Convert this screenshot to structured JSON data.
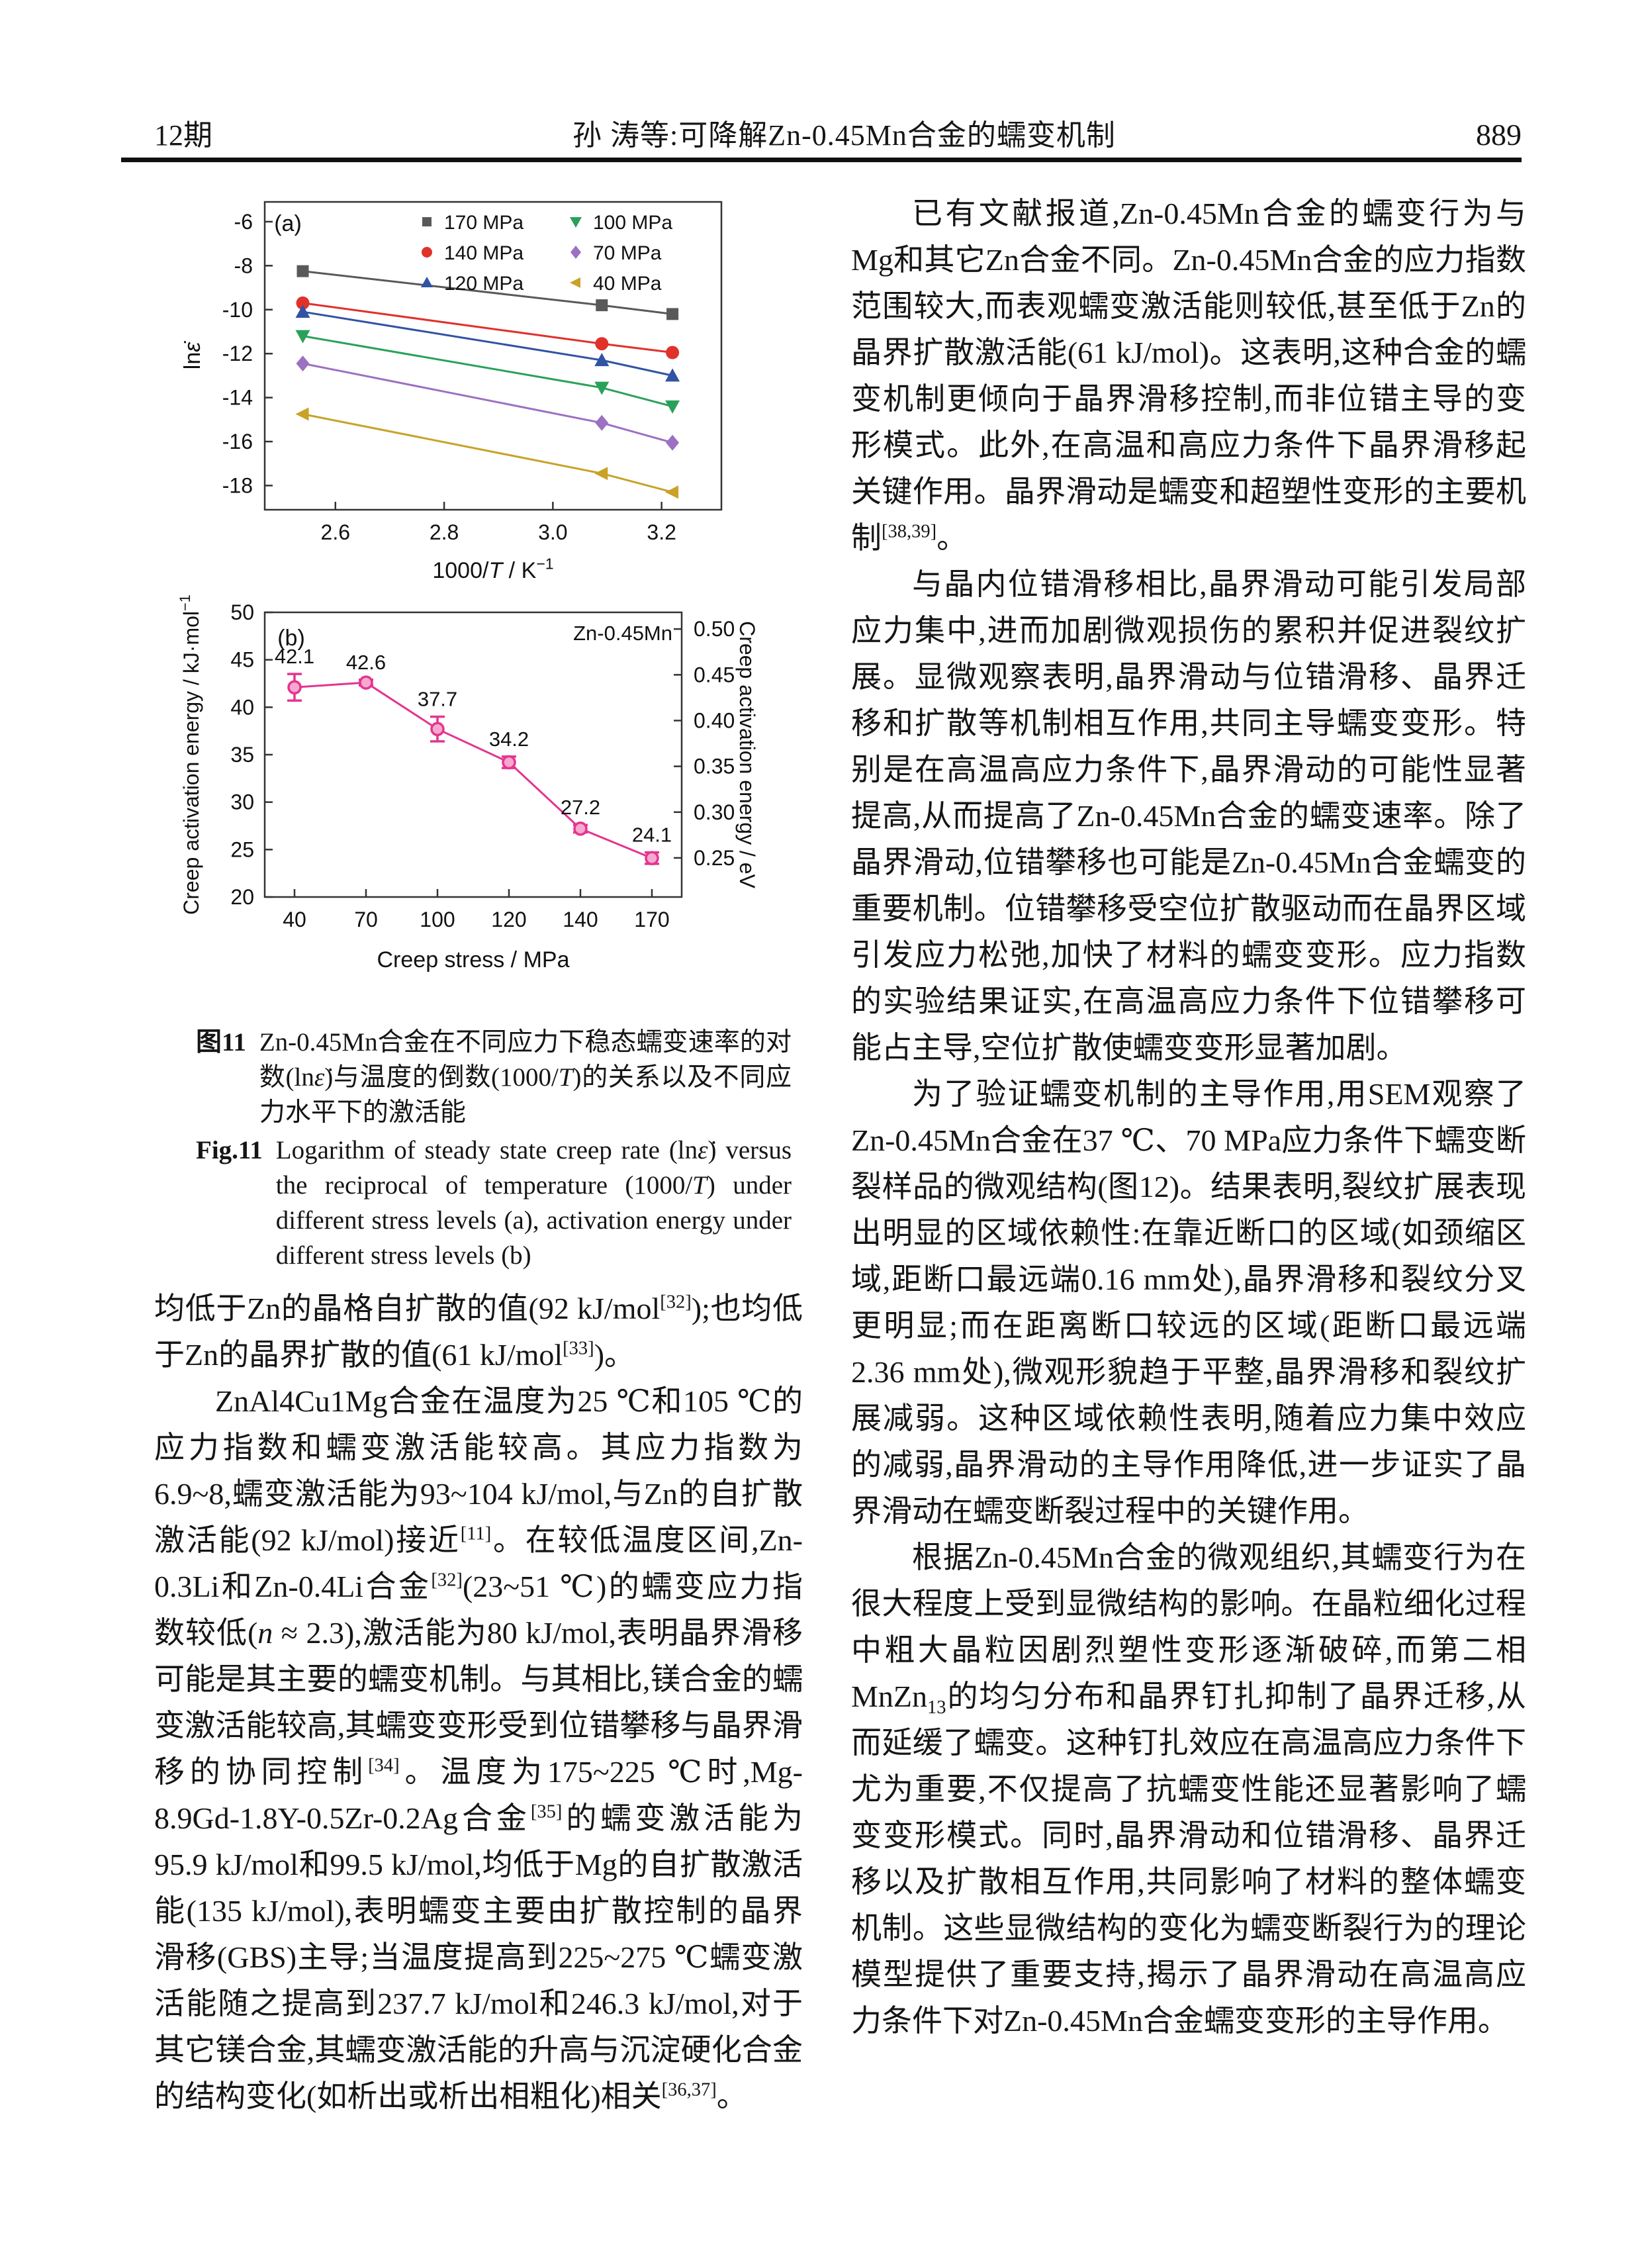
{
  "header": {
    "issue": "12期",
    "title": "孙 涛等:可降解Zn-0.45Mn合金的蠕变机制",
    "page": "889"
  },
  "chart_data": [
    {
      "id": "a",
      "type": "line",
      "panel_label": "(a)",
      "xlabel": "1000/T / K⁻¹",
      "xlabel_parts": [
        "1000/",
        {
          "i": "T"
        },
        " / K",
        {
          "sup": "−1"
        }
      ],
      "ylabel": "lnε̇",
      "ylabel_parts": [
        "ln",
        {
          "i": "ε̇"
        }
      ],
      "xlim": [
        2.47,
        3.31
      ],
      "ylim": [
        -19.1,
        -5.1
      ],
      "xticks": [
        "2.6",
        "2.8",
        "3.0",
        "3.2"
      ],
      "yticks": [
        -6,
        -8,
        -10,
        -12,
        -14,
        -16,
        -18
      ],
      "x": [
        2.54,
        3.09,
        3.22
      ],
      "series": [
        {
          "name": "170 MPa",
          "marker": "square",
          "color": "#595959",
          "values": [
            -8.25,
            -9.8,
            -10.2
          ]
        },
        {
          "name": "140 MPa",
          "marker": "circle",
          "color": "#e0312b",
          "values": [
            -9.7,
            -11.55,
            -11.95
          ]
        },
        {
          "name": "120 MPa",
          "marker": "triangle-up",
          "color": "#3153a4",
          "values": [
            -10.1,
            -12.3,
            -13.0
          ]
        },
        {
          "name": "100 MPa",
          "marker": "triangle-down",
          "color": "#2aa15a",
          "values": [
            -11.2,
            -13.55,
            -14.4
          ]
        },
        {
          "name": "70 MPa",
          "marker": "diamond",
          "color": "#9c70c2",
          "values": [
            -12.45,
            -15.15,
            -16.05
          ]
        },
        {
          "name": "40 MPa",
          "marker": "triangle-left",
          "color": "#c9a227",
          "values": [
            -14.75,
            -17.45,
            -18.3
          ]
        }
      ],
      "legend_position": "top-right",
      "grid": false
    },
    {
      "id": "b",
      "type": "line",
      "panel_label": "(b)",
      "annotation": "Zn-0.45Mn",
      "xlabel": "Creep stress / MPa",
      "ylabel_left": "Creep activation energy / kJ·mol⁻¹",
      "ylabel_left_parts": [
        "Creep activation energy / kJ·mol",
        {
          "sup": "−1"
        }
      ],
      "ylabel_right": "Creep activation energy / eV",
      "categories": [
        "40",
        "70",
        "100",
        "120",
        "140",
        "170"
      ],
      "values": [
        42.1,
        42.6,
        37.7,
        34.2,
        27.2,
        24.1
      ],
      "errors": [
        1.4,
        0.3,
        1.3,
        0.6,
        0.4,
        0.6
      ],
      "point_labels": [
        "42.1",
        "42.6",
        "37.7",
        "34.2",
        "27.2",
        "24.1"
      ],
      "ylim_left": [
        20,
        50
      ],
      "yticks_left": [
        20,
        25,
        30,
        35,
        40,
        45,
        50
      ],
      "yticks_right": [
        "0.25",
        "0.30",
        "0.35",
        "0.40",
        "0.45",
        "0.50"
      ],
      "ev_to_kj_per_mol": 96.485,
      "color": "#e5348f",
      "marker_fill": "#f6a8cf",
      "grid": false
    }
  ],
  "figure_caption": {
    "cn_label": "图11",
    "cn_segments": [
      "Zn-0.45Mn合金在不同应力下稳态蠕变速率的对数(ln",
      {
        "i": "ε̇"
      },
      ")与温度的倒数(1000/",
      {
        "i": "T"
      },
      ")的关系以及不同应力水平下的激活能"
    ],
    "en_label": "Fig.11",
    "en_segments": [
      "Logarithm of steady state creep rate (ln",
      {
        "i": "ε̇"
      },
      ") versus the reciprocal of temperature (1000/",
      {
        "i": "T"
      },
      ") under different stress levels (a), activation energy under different stress levels (b)"
    ]
  },
  "left_column": {
    "paragraphs": [
      {
        "indent": false,
        "segments": [
          "均低于Zn的晶格自扩散的值(92 kJ/mol",
          {
            "sup": "[32]"
          },
          ");也均低于Zn的晶界扩散的值(61 kJ/mol",
          {
            "sup": "[33]"
          },
          ")。"
        ]
      },
      {
        "indent": true,
        "segments": [
          "ZnAl4Cu1Mg合金在温度为25 ℃和105 ℃的应力指数和蠕变激活能较高。其应力指数为6.9~8,蠕变激活能为93~104 kJ/mol,与Zn的自扩散激活能(92 kJ/mol)接近",
          {
            "sup": "[11]"
          },
          "。在较低温度区间,Zn-0.3Li和Zn-0.4Li合金",
          {
            "sup": "[32]"
          },
          "(23~51 ℃)的蠕变应力指数较低(",
          {
            "i": "n"
          },
          " ≈ 2.3),激活能为80 kJ/mol,表明晶界滑移可能是其主要的蠕变机制。与其相比,镁合金的蠕变激活能较高,其蠕变变形受到位错攀移与晶界滑移的协同控制",
          {
            "sup": "[34]"
          },
          "。温度为175~225 ℃时,Mg-8.9Gd-1.8Y-0.5Zr-0.2Ag合金",
          {
            "sup": "[35]"
          },
          "的蠕变激活能为95.9 kJ/mol和99.5 kJ/mol,均低于Mg的自扩散激活能(135 kJ/mol),表明蠕变主要由扩散控制的晶界滑移(GBS)主导;当温度提高到225~275 ℃蠕变激活能随之提高到237.7 kJ/mol和246.3 kJ/mol,对于其它镁合金,其蠕变激活能的升高与沉淀硬化合金的结构变化(如析出或析出相粗化)相关",
          {
            "sup": "[36,37]"
          },
          "。"
        ]
      }
    ]
  },
  "right_column": {
    "paragraphs": [
      {
        "indent": true,
        "segments": [
          "已有文献报道,Zn-0.45Mn合金的蠕变行为与Mg和其它Zn合金不同。Zn-0.45Mn合金的应力指数范围较大,而表观蠕变激活能则较低,甚至低于Zn的晶界扩散激活能(61 kJ/mol)。这表明,这种合金的蠕变机制更倾向于晶界滑移控制,而非位错主导的变形模式。此外,在高温和高应力条件下晶界滑移起关键作用。晶界滑动是蠕变和超塑性变形的主要机制",
          {
            "sup": "[38,39]"
          },
          "。"
        ]
      },
      {
        "indent": true,
        "segments": [
          "与晶内位错滑移相比,晶界滑动可能引发局部应力集中,进而加剧微观损伤的累积并促进裂纹扩展。显微观察表明,晶界滑动与位错滑移、晶界迁移和扩散等机制相互作用,共同主导蠕变变形。特别是在高温高应力条件下,晶界滑动的可能性显著提高,从而提高了Zn-0.45Mn合金的蠕变速率。除了晶界滑动,位错攀移也可能是Zn-0.45Mn合金蠕变的重要机制。位错攀移受空位扩散驱动而在晶界区域引发应力松弛,加快了材料的蠕变变形。应力指数的实验结果证实,在高温高应力条件下位错攀移可能占主导,空位扩散使蠕变变形显著加剧。"
        ]
      },
      {
        "indent": true,
        "segments": [
          "为了验证蠕变机制的主导作用,用SEM观察了Zn-0.45Mn合金在37 ℃、70 MPa应力条件下蠕变断裂样品的微观结构(图12)。结果表明,裂纹扩展表现出明显的区域依赖性:在靠近断口的区域(如颈缩区域,距断口最远端0.16 mm处),晶界滑移和裂纹分叉更明显;而在距离断口较远的区域(距断口最远端2.36 mm处),微观形貌趋于平整,晶界滑移和裂纹扩展减弱。这种区域依赖性表明,随着应力集中效应的减弱,晶界滑动的主导作用降低,进一步证实了晶界滑动在蠕变断裂过程中的关键作用。"
        ]
      },
      {
        "indent": true,
        "segments": [
          "根据Zn-0.45Mn合金的微观组织,其蠕变行为在很大程度上受到显微结构的影响。在晶粒细化过程中粗大晶粒因剧烈塑性变形逐渐破碎,而第二相MnZn",
          {
            "sub": "13"
          },
          "的均匀分布和晶界钉扎抑制了晶界迁移,从而延缓了蠕变。这种钉扎效应在高温高应力条件下尤为重要,不仅提高了抗蠕变性能还显著影响了蠕变变形模式。同时,晶界滑动和位错滑移、晶界迁移以及扩散相互作用,共同影响了材料的整体蠕变机制。这些显微结构的变化为蠕变断裂行为的理论模型提供了重要支持,揭示了晶界滑动在高温高应力条件下对Zn-0.45Mn合金蠕变变形的主导作用。"
        ]
      }
    ]
  }
}
